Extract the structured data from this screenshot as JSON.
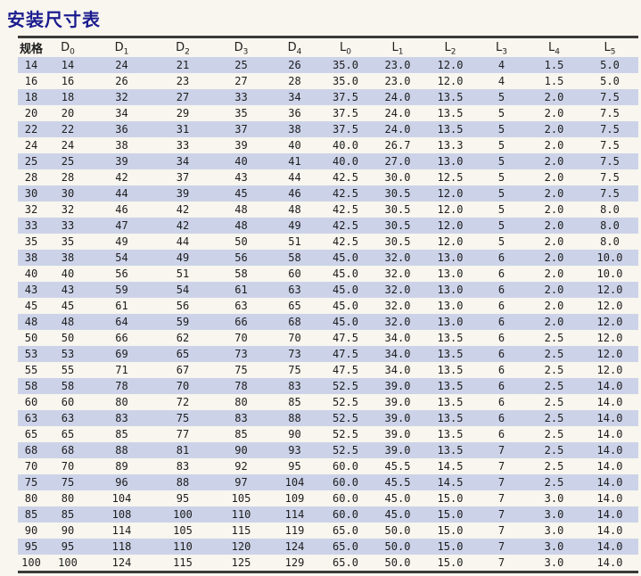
{
  "title": "安装尺寸表",
  "colors": {
    "title": "#1c1c90",
    "stripe": "#ccd3e9",
    "background": "#f8f6ee",
    "border": "#3a3a38",
    "text": "#1d1d1d"
  },
  "table": {
    "columns": [
      {
        "base": "规格",
        "sub": "",
        "key": "spec"
      },
      {
        "base": "D",
        "sub": "0",
        "key": "d0"
      },
      {
        "base": "D",
        "sub": "1",
        "key": "d1"
      },
      {
        "base": "D",
        "sub": "2",
        "key": "d2"
      },
      {
        "base": "D",
        "sub": "3",
        "key": "d3"
      },
      {
        "base": "D",
        "sub": "4",
        "key": "d4"
      },
      {
        "base": "L",
        "sub": "0",
        "key": "l0"
      },
      {
        "base": "L",
        "sub": "1",
        "key": "l1"
      },
      {
        "base": "L",
        "sub": "2",
        "key": "l2"
      },
      {
        "base": "L",
        "sub": "3",
        "key": "l3"
      },
      {
        "base": "L",
        "sub": "4",
        "key": "l4"
      },
      {
        "base": "L",
        "sub": "5",
        "key": "l5"
      }
    ],
    "rows": [
      [
        "14",
        "14",
        "24",
        "21",
        "25",
        "26",
        "35.0",
        "23.0",
        "12.0",
        "4",
        "1.5",
        "5.0"
      ],
      [
        "16",
        "16",
        "26",
        "23",
        "27",
        "28",
        "35.0",
        "23.0",
        "12.0",
        "4",
        "1.5",
        "5.0"
      ],
      [
        "18",
        "18",
        "32",
        "27",
        "33",
        "34",
        "37.5",
        "24.0",
        "13.5",
        "5",
        "2.0",
        "7.5"
      ],
      [
        "20",
        "20",
        "34",
        "29",
        "35",
        "36",
        "37.5",
        "24.0",
        "13.5",
        "5",
        "2.0",
        "7.5"
      ],
      [
        "22",
        "22",
        "36",
        "31",
        "37",
        "38",
        "37.5",
        "24.0",
        "13.5",
        "5",
        "2.0",
        "7.5"
      ],
      [
        "24",
        "24",
        "38",
        "33",
        "39",
        "40",
        "40.0",
        "26.7",
        "13.3",
        "5",
        "2.0",
        "7.5"
      ],
      [
        "25",
        "25",
        "39",
        "34",
        "40",
        "41",
        "40.0",
        "27.0",
        "13.0",
        "5",
        "2.0",
        "7.5"
      ],
      [
        "28",
        "28",
        "42",
        "37",
        "43",
        "44",
        "42.5",
        "30.0",
        "12.5",
        "5",
        "2.0",
        "7.5"
      ],
      [
        "30",
        "30",
        "44",
        "39",
        "45",
        "46",
        "42.5",
        "30.5",
        "12.0",
        "5",
        "2.0",
        "7.5"
      ],
      [
        "32",
        "32",
        "46",
        "42",
        "48",
        "48",
        "42.5",
        "30.5",
        "12.0",
        "5",
        "2.0",
        "8.0"
      ],
      [
        "33",
        "33",
        "47",
        "42",
        "48",
        "49",
        "42.5",
        "30.5",
        "12.0",
        "5",
        "2.0",
        "8.0"
      ],
      [
        "35",
        "35",
        "49",
        "44",
        "50",
        "51",
        "42.5",
        "30.5",
        "12.0",
        "5",
        "2.0",
        "8.0"
      ],
      [
        "38",
        "38",
        "54",
        "49",
        "56",
        "58",
        "45.0",
        "32.0",
        "13.0",
        "6",
        "2.0",
        "10.0"
      ],
      [
        "40",
        "40",
        "56",
        "51",
        "58",
        "60",
        "45.0",
        "32.0",
        "13.0",
        "6",
        "2.0",
        "10.0"
      ],
      [
        "43",
        "43",
        "59",
        "54",
        "61",
        "63",
        "45.0",
        "32.0",
        "13.0",
        "6",
        "2.0",
        "12.0"
      ],
      [
        "45",
        "45",
        "61",
        "56",
        "63",
        "65",
        "45.0",
        "32.0",
        "13.0",
        "6",
        "2.0",
        "12.0"
      ],
      [
        "48",
        "48",
        "64",
        "59",
        "66",
        "68",
        "45.0",
        "32.0",
        "13.0",
        "6",
        "2.0",
        "12.0"
      ],
      [
        "50",
        "50",
        "66",
        "62",
        "70",
        "70",
        "47.5",
        "34.0",
        "13.5",
        "6",
        "2.5",
        "12.0"
      ],
      [
        "53",
        "53",
        "69",
        "65",
        "73",
        "73",
        "47.5",
        "34.0",
        "13.5",
        "6",
        "2.5",
        "12.0"
      ],
      [
        "55",
        "55",
        "71",
        "67",
        "75",
        "75",
        "47.5",
        "34.0",
        "13.5",
        "6",
        "2.5",
        "12.0"
      ],
      [
        "58",
        "58",
        "78",
        "70",
        "78",
        "83",
        "52.5",
        "39.0",
        "13.5",
        "6",
        "2.5",
        "14.0"
      ],
      [
        "60",
        "60",
        "80",
        "72",
        "80",
        "85",
        "52.5",
        "39.0",
        "13.5",
        "6",
        "2.5",
        "14.0"
      ],
      [
        "63",
        "63",
        "83",
        "75",
        "83",
        "88",
        "52.5",
        "39.0",
        "13.5",
        "6",
        "2.5",
        "14.0"
      ],
      [
        "65",
        "65",
        "85",
        "77",
        "85",
        "90",
        "52.5",
        "39.0",
        "13.5",
        "6",
        "2.5",
        "14.0"
      ],
      [
        "68",
        "68",
        "88",
        "81",
        "90",
        "93",
        "52.5",
        "39.0",
        "13.5",
        "7",
        "2.5",
        "14.0"
      ],
      [
        "70",
        "70",
        "89",
        "83",
        "92",
        "95",
        "60.0",
        "45.5",
        "14.5",
        "7",
        "2.5",
        "14.0"
      ],
      [
        "75",
        "75",
        "96",
        "88",
        "97",
        "104",
        "60.0",
        "45.5",
        "14.5",
        "7",
        "2.5",
        "14.0"
      ],
      [
        "80",
        "80",
        "104",
        "95",
        "105",
        "109",
        "60.0",
        "45.0",
        "15.0",
        "7",
        "3.0",
        "14.0"
      ],
      [
        "85",
        "85",
        "108",
        "100",
        "110",
        "114",
        "60.0",
        "45.0",
        "15.0",
        "7",
        "3.0",
        "14.0"
      ],
      [
        "90",
        "90",
        "114",
        "105",
        "115",
        "119",
        "65.0",
        "50.0",
        "15.0",
        "7",
        "3.0",
        "14.0"
      ],
      [
        "95",
        "95",
        "118",
        "110",
        "120",
        "124",
        "65.0",
        "50.0",
        "15.0",
        "7",
        "3.0",
        "14.0"
      ],
      [
        "100",
        "100",
        "124",
        "115",
        "125",
        "129",
        "65.0",
        "50.0",
        "15.0",
        "7",
        "3.0",
        "14.0"
      ]
    ]
  }
}
